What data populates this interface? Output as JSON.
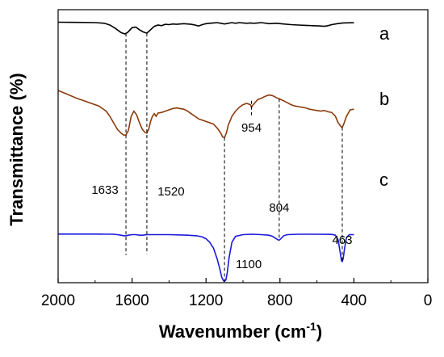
{
  "chart_data": {
    "type": "line",
    "xlabel": "Wavenumber (cm",
    "xlabel_superscript": "-1",
    "xlabel_suffix": ")",
    "ylabel": "Transmittance (%)",
    "xlim": [
      2000,
      0
    ],
    "x_ticks": [
      2000,
      1600,
      1200,
      800,
      400,
      0
    ],
    "x_tick_labels": [
      "2000",
      "1600",
      "1200",
      "800",
      "400",
      "0"
    ],
    "grid": false,
    "series": [
      {
        "name": "a",
        "color": "#000000",
        "baseline": 0.97,
        "points": [
          [
            2000,
            0.97
          ],
          [
            1900,
            0.968
          ],
          [
            1800,
            0.965
          ],
          [
            1750,
            0.955
          ],
          [
            1720,
            0.93
          ],
          [
            1690,
            0.88
          ],
          [
            1660,
            0.82
          ],
          [
            1640,
            0.8
          ],
          [
            1625,
            0.82
          ],
          [
            1600,
            0.89
          ],
          [
            1580,
            0.9
          ],
          [
            1560,
            0.86
          ],
          [
            1540,
            0.83
          ],
          [
            1520,
            0.81
          ],
          [
            1500,
            0.86
          ],
          [
            1480,
            0.91
          ],
          [
            1460,
            0.93
          ],
          [
            1440,
            0.92
          ],
          [
            1420,
            0.94
          ],
          [
            1400,
            0.935
          ],
          [
            1380,
            0.945
          ],
          [
            1360,
            0.94
          ],
          [
            1340,
            0.945
          ],
          [
            1320,
            0.95
          ],
          [
            1300,
            0.945
          ],
          [
            1280,
            0.94
          ],
          [
            1260,
            0.93
          ],
          [
            1240,
            0.915
          ],
          [
            1220,
            0.935
          ],
          [
            1200,
            0.95
          ],
          [
            1180,
            0.955
          ],
          [
            1160,
            0.96
          ],
          [
            1140,
            0.965
          ],
          [
            1120,
            0.955
          ],
          [
            1100,
            0.945
          ],
          [
            1080,
            0.955
          ],
          [
            1060,
            0.965
          ],
          [
            1040,
            0.955
          ],
          [
            1020,
            0.965
          ],
          [
            1000,
            0.96
          ],
          [
            980,
            0.955
          ],
          [
            960,
            0.96
          ],
          [
            940,
            0.955
          ],
          [
            920,
            0.96
          ],
          [
            900,
            0.965
          ],
          [
            860,
            0.95
          ],
          [
            820,
            0.955
          ],
          [
            780,
            0.945
          ],
          [
            740,
            0.935
          ],
          [
            700,
            0.93
          ],
          [
            660,
            0.925
          ],
          [
            620,
            0.92
          ],
          [
            580,
            0.915
          ],
          [
            560,
            0.91
          ],
          [
            540,
            0.92
          ],
          [
            520,
            0.935
          ],
          [
            490,
            0.95
          ],
          [
            460,
            0.96
          ],
          [
            420,
            0.962
          ],
          [
            400,
            0.962
          ]
        ]
      },
      {
        "name": "b",
        "color": "#8b3a0a",
        "baseline": 0.82,
        "points": [
          [
            2000,
            0.8
          ],
          [
            1950,
            0.77
          ],
          [
            1900,
            0.74
          ],
          [
            1860,
            0.72
          ],
          [
            1820,
            0.7
          ],
          [
            1780,
            0.68
          ],
          [
            1740,
            0.64
          ],
          [
            1720,
            0.6
          ],
          [
            1700,
            0.55
          ],
          [
            1680,
            0.5
          ],
          [
            1660,
            0.47
          ],
          [
            1645,
            0.455
          ],
          [
            1633,
            0.455
          ],
          [
            1620,
            0.49
          ],
          [
            1605,
            0.6
          ],
          [
            1590,
            0.64
          ],
          [
            1575,
            0.61
          ],
          [
            1560,
            0.55
          ],
          [
            1545,
            0.5
          ],
          [
            1530,
            0.475
          ],
          [
            1520,
            0.47
          ],
          [
            1510,
            0.5
          ],
          [
            1500,
            0.56
          ],
          [
            1490,
            0.6
          ],
          [
            1480,
            0.62
          ],
          [
            1470,
            0.6
          ],
          [
            1460,
            0.625
          ],
          [
            1440,
            0.63
          ],
          [
            1420,
            0.64
          ],
          [
            1400,
            0.65
          ],
          [
            1380,
            0.66
          ],
          [
            1360,
            0.665
          ],
          [
            1340,
            0.66
          ],
          [
            1320,
            0.655
          ],
          [
            1300,
            0.64
          ],
          [
            1280,
            0.62
          ],
          [
            1260,
            0.6
          ],
          [
            1240,
            0.58
          ],
          [
            1220,
            0.57
          ],
          [
            1200,
            0.56
          ],
          [
            1180,
            0.55
          ],
          [
            1160,
            0.54
          ],
          [
            1140,
            0.51
          ],
          [
            1120,
            0.47
          ],
          [
            1110,
            0.44
          ],
          [
            1100,
            0.435
          ],
          [
            1090,
            0.47
          ],
          [
            1080,
            0.53
          ],
          [
            1060,
            0.6
          ],
          [
            1040,
            0.64
          ],
          [
            1020,
            0.67
          ],
          [
            1000,
            0.69
          ],
          [
            980,
            0.7
          ],
          [
            960,
            0.69
          ],
          [
            954,
            0.67
          ],
          [
            945,
            0.69
          ],
          [
            920,
            0.73
          ],
          [
            900,
            0.74
          ],
          [
            880,
            0.755
          ],
          [
            860,
            0.765
          ],
          [
            840,
            0.76
          ],
          [
            820,
            0.745
          ],
          [
            804,
            0.735
          ],
          [
            780,
            0.72
          ],
          [
            760,
            0.705
          ],
          [
            740,
            0.69
          ],
          [
            720,
            0.68
          ],
          [
            700,
            0.675
          ],
          [
            680,
            0.67
          ],
          [
            660,
            0.665
          ],
          [
            640,
            0.655
          ],
          [
            620,
            0.65
          ],
          [
            600,
            0.645
          ],
          [
            580,
            0.64
          ],
          [
            560,
            0.645
          ],
          [
            540,
            0.635
          ],
          [
            520,
            0.63
          ],
          [
            500,
            0.6
          ],
          [
            485,
            0.55
          ],
          [
            470,
            0.52
          ],
          [
            463,
            0.515
          ],
          [
            455,
            0.54
          ],
          [
            440,
            0.6
          ],
          [
            420,
            0.65
          ],
          [
            400,
            0.655
          ]
        ]
      },
      {
        "name": "c",
        "color": "#1a1adc",
        "baseline": 0.45,
        "points": [
          [
            2000,
            0.45
          ],
          [
            1800,
            0.45
          ],
          [
            1700,
            0.448
          ],
          [
            1680,
            0.445
          ],
          [
            1660,
            0.44
          ],
          [
            1645,
            0.435
          ],
          [
            1633,
            0.435
          ],
          [
            1620,
            0.44
          ],
          [
            1600,
            0.445
          ],
          [
            1580,
            0.445
          ],
          [
            1560,
            0.44
          ],
          [
            1540,
            0.44
          ],
          [
            1520,
            0.445
          ],
          [
            1500,
            0.445
          ],
          [
            1400,
            0.445
          ],
          [
            1300,
            0.44
          ],
          [
            1250,
            0.435
          ],
          [
            1220,
            0.425
          ],
          [
            1200,
            0.41
          ],
          [
            1180,
            0.38
          ],
          [
            1160,
            0.33
          ],
          [
            1140,
            0.24
          ],
          [
            1125,
            0.15
          ],
          [
            1115,
            0.08
          ],
          [
            1105,
            0.05
          ],
          [
            1100,
            0.045
          ],
          [
            1092,
            0.06
          ],
          [
            1085,
            0.12
          ],
          [
            1075,
            0.25
          ],
          [
            1060,
            0.38
          ],
          [
            1040,
            0.43
          ],
          [
            1000,
            0.445
          ],
          [
            950,
            0.448
          ],
          [
            900,
            0.445
          ],
          [
            860,
            0.44
          ],
          [
            840,
            0.43
          ],
          [
            820,
            0.41
          ],
          [
            810,
            0.4
          ],
          [
            804,
            0.398
          ],
          [
            795,
            0.41
          ],
          [
            780,
            0.435
          ],
          [
            760,
            0.445
          ],
          [
            700,
            0.448
          ],
          [
            600,
            0.448
          ],
          [
            520,
            0.447
          ],
          [
            500,
            0.44
          ],
          [
            485,
            0.4
          ],
          [
            475,
            0.3
          ],
          [
            467,
            0.22
          ],
          [
            463,
            0.215
          ],
          [
            458,
            0.24
          ],
          [
            450,
            0.33
          ],
          [
            440,
            0.42
          ],
          [
            425,
            0.445
          ],
          [
            400,
            0.445
          ]
        ]
      }
    ],
    "peak_markers": [
      {
        "x": 1633,
        "label": "1633"
      },
      {
        "x": 1520,
        "label": "1520"
      },
      {
        "x": 1100,
        "label": "1100"
      },
      {
        "x": 954,
        "label": "954"
      },
      {
        "x": 804,
        "label": "804"
      },
      {
        "x": 463,
        "label": "463"
      }
    ]
  }
}
